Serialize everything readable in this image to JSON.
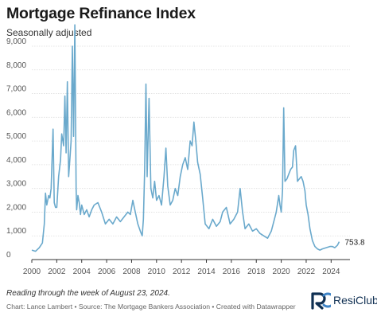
{
  "title": "Mortgage Refinance Index",
  "subtitle": "Seasonally adjusted",
  "note": "Reading through the week of August 23, 2024.",
  "credit": "Chart: Lance Lambert • Source: The Mortgage Bankers Association • Created with Datawrapper",
  "logo": {
    "text": "ResiClub",
    "icon": "resiclub-logo-icon"
  },
  "colors": {
    "line": "#6aa9cc",
    "grid": "#dddddd",
    "axis": "#333333",
    "tick_text": "#555555"
  },
  "chart_data": {
    "type": "line",
    "title": "Mortgage Refinance Index",
    "subtitle": "Seasonally adjusted",
    "xlabel": "",
    "ylabel": "",
    "xlim": [
      2000,
      2025
    ],
    "ylim": [
      0,
      9000
    ],
    "x_ticks": [
      "2000",
      "2002",
      "2004",
      "2006",
      "2008",
      "2010",
      "2012",
      "2014",
      "2016",
      "2018",
      "2020",
      "2022",
      "2024"
    ],
    "y_ticks": [
      "0",
      "1,000",
      "2,000",
      "3,000",
      "4,000",
      "5,000",
      "6,000",
      "7,000",
      "8,000",
      "9,000"
    ],
    "grid": "horizontal",
    "end_label": "753.8",
    "series": [
      {
        "x": [
          2000.0,
          2000.3,
          2000.6,
          2000.85,
          2001.0,
          2001.1,
          2001.2,
          2001.35,
          2001.45,
          2001.55,
          2001.7,
          2001.8,
          2001.9,
          2002.0,
          2002.15,
          2002.3,
          2002.4,
          2002.55,
          2002.65,
          2002.75,
          2002.85,
          2002.95,
          2003.05,
          2003.15,
          2003.25,
          2003.35,
          2003.45,
          2003.55,
          2003.6,
          2003.7,
          2003.8,
          2003.9,
          2004.0,
          2004.2,
          2004.4,
          2004.6,
          2004.8,
          2005.0,
          2005.3,
          2005.6,
          2005.9,
          2006.2,
          2006.5,
          2006.8,
          2007.1,
          2007.4,
          2007.7,
          2007.9,
          2008.1,
          2008.3,
          2008.5,
          2008.7,
          2008.85,
          2008.95,
          2009.05,
          2009.15,
          2009.25,
          2009.4,
          2009.55,
          2009.7,
          2009.85,
          2010.0,
          2010.2,
          2010.4,
          2010.6,
          2010.75,
          2010.9,
          2011.1,
          2011.3,
          2011.5,
          2011.7,
          2011.9,
          2012.1,
          2012.3,
          2012.5,
          2012.7,
          2012.85,
          2013.0,
          2013.15,
          2013.3,
          2013.5,
          2013.7,
          2013.9,
          2014.2,
          2014.5,
          2014.8,
          2015.1,
          2015.3,
          2015.6,
          2015.9,
          2016.2,
          2016.5,
          2016.7,
          2016.9,
          2017.1,
          2017.4,
          2017.7,
          2018.0,
          2018.3,
          2018.6,
          2018.9,
          2019.2,
          2019.4,
          2019.6,
          2019.8,
          2019.9,
          2020.0,
          2020.1,
          2020.2,
          2020.3,
          2020.45,
          2020.6,
          2020.75,
          2020.9,
          2021.0,
          2021.15,
          2021.3,
          2021.45,
          2021.6,
          2021.75,
          2021.9,
          2022.0,
          2022.15,
          2022.3,
          2022.5,
          2022.7,
          2022.9,
          2023.1,
          2023.3,
          2023.6,
          2023.9,
          2024.1,
          2024.3,
          2024.5,
          2024.65
        ],
        "y": [
          400,
          350,
          500,
          700,
          1500,
          2800,
          2300,
          2700,
          2600,
          3000,
          5500,
          2400,
          2200,
          2200,
          3500,
          4200,
          5300,
          4800,
          6900,
          4500,
          7500,
          3500,
          4200,
          5000,
          9000,
          5200,
          9900,
          3000,
          2100,
          2700,
          2400,
          1900,
          2300,
          1900,
          2100,
          1800,
          2100,
          2300,
          2400,
          2000,
          1500,
          1700,
          1500,
          1800,
          1600,
          1800,
          2000,
          1900,
          2500,
          2000,
          1500,
          1200,
          1000,
          1700,
          3800,
          7400,
          3500,
          6800,
          3000,
          2600,
          3300,
          2500,
          2700,
          2300,
          3500,
          4700,
          3100,
          2300,
          2500,
          3000,
          2700,
          3500,
          4000,
          4300,
          3800,
          5000,
          4800,
          5800,
          5000,
          4100,
          3600,
          2600,
          1500,
          1300,
          1700,
          1400,
          1600,
          2000,
          2200,
          1500,
          1700,
          2000,
          3000,
          2000,
          1300,
          1500,
          1200,
          1300,
          1100,
          1000,
          900,
          1200,
          1600,
          2000,
          2700,
          2300,
          2000,
          2900,
          6400,
          3300,
          3400,
          3600,
          3800,
          3900,
          4600,
          4800,
          3300,
          3400,
          3500,
          3300,
          2900,
          2300,
          1900,
          1300,
          800,
          550,
          450,
          400,
          450,
          500,
          550,
          550,
          500,
          600,
          753.8
        ]
      }
    ]
  }
}
